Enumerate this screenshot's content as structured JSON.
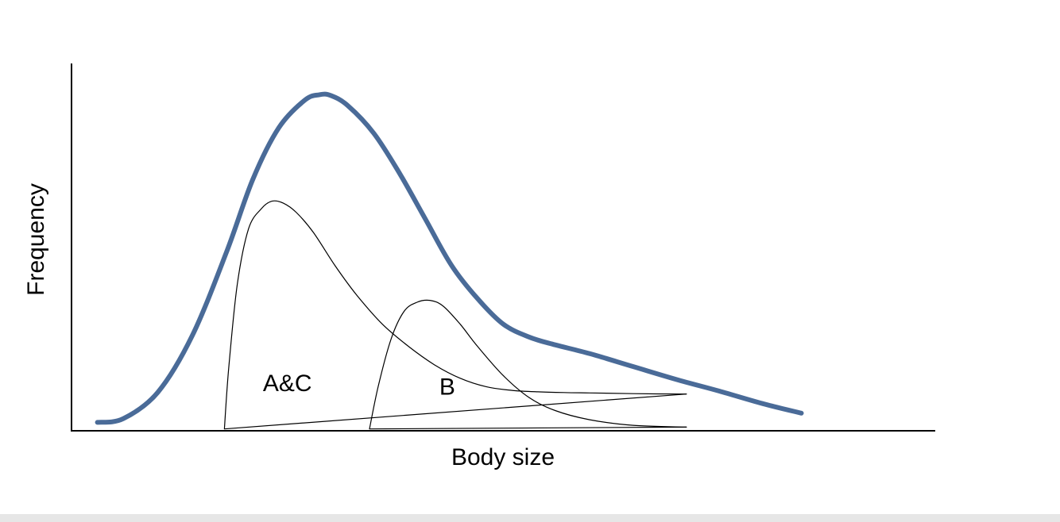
{
  "chart_data": {
    "type": "line",
    "title": "",
    "xlabel": "Body size",
    "ylabel": "Frequency",
    "xlim": [
      0,
      100
    ],
    "ylim": [
      0,
      100
    ],
    "grid": false,
    "legend": "none",
    "annotations": [
      {
        "text": "A&C",
        "x": 25,
        "y": 13
      },
      {
        "text": "B",
        "x": 43.5,
        "y": 12
      }
    ],
    "series": [
      {
        "color": "#4a6b98",
        "x": [
          3,
          6,
          10,
          14,
          18,
          21,
          24,
          27,
          28.7,
          30,
          32,
          35,
          38,
          41,
          44,
          47,
          50,
          53,
          56,
          60,
          65,
          70,
          75,
          80,
          84.5
        ],
        "y": [
          2.3,
          3.3,
          10.5,
          26,
          49,
          68.5,
          82.5,
          90,
          91.5,
          91.3,
          88.5,
          81,
          70,
          57.5,
          45,
          36,
          29,
          25.5,
          23.4,
          21,
          17.5,
          14,
          10.8,
          7.4,
          4.8
        ]
      },
      {
        "color": "#000000",
        "x": [
          17.7,
          18.2,
          19.2,
          20.5,
          22,
          23.2,
          24.5,
          26,
          28,
          30.5,
          33,
          36,
          39,
          42,
          45,
          48,
          51,
          54,
          57,
          60,
          65,
          71.2
        ],
        "y": [
          0.5,
          17,
          40,
          55,
          60.5,
          62.5,
          62,
          59.5,
          54,
          45,
          37,
          29,
          23,
          18,
          14.3,
          12,
          11,
          10.6,
          10.4,
          10.3,
          10.1,
          10
        ],
        "baseline": true
      },
      {
        "color": "#000000",
        "x": [
          34.5,
          35.5,
          37,
          38.5,
          40,
          41.5,
          43,
          45,
          47,
          50,
          53,
          56,
          60,
          65,
          71.2
        ],
        "y": [
          0.5,
          12,
          25,
          32.5,
          35,
          35.5,
          34,
          29,
          23,
          15,
          9,
          5.5,
          3,
          1.5,
          1
        ],
        "baseline": true
      }
    ]
  }
}
